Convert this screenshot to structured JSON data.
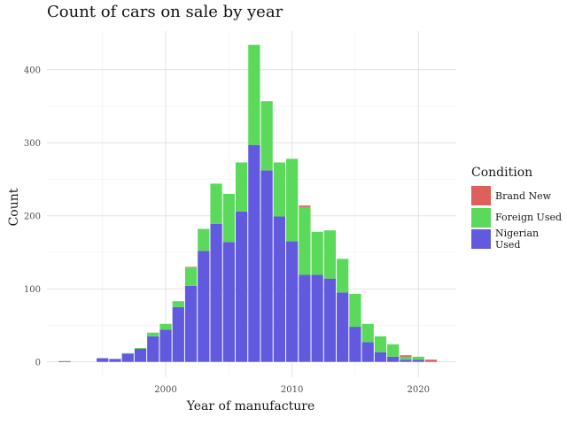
{
  "chart_data": {
    "type": "bar",
    "stacked": true,
    "title": "Count of cars on sale by year",
    "xlabel": "Year of manufacture",
    "ylabel": "Count",
    "xlim": [
      1990.6,
      2023.0
    ],
    "ylim": [
      -21,
      453
    ],
    "xticks": [
      2000,
      2010,
      2020
    ],
    "yticks": [
      0,
      100,
      200,
      300,
      400
    ],
    "grid": true,
    "legend": {
      "title": "Condition",
      "position": "right"
    },
    "x": [
      1992,
      1993,
      1994,
      1995,
      1996,
      1997,
      1998,
      1999,
      2000,
      2001,
      2002,
      2003,
      2004,
      2005,
      2006,
      2007,
      2008,
      2009,
      2010,
      2011,
      2012,
      2013,
      2014,
      2015,
      2016,
      2017,
      2018,
      2019,
      2020,
      2021
    ],
    "series": [
      {
        "name": "Nigerian Used",
        "color": "#6159de",
        "values": [
          1,
          0,
          0,
          5,
          4,
          11,
          18,
          35,
          44,
          75,
          104,
          152,
          189,
          164,
          206,
          297,
          262,
          199,
          165,
          119,
          119,
          114,
          95,
          48,
          27,
          13,
          7,
          3,
          3,
          0
        ]
      },
      {
        "name": "Foreign Used",
        "color": "#5bd95b",
        "values": [
          0,
          0,
          0,
          0,
          0,
          1,
          1,
          5,
          8,
          8,
          25,
          30,
          55,
          66,
          67,
          137,
          95,
          74,
          113,
          93,
          59,
          66,
          46,
          45,
          25,
          22,
          17,
          4,
          4,
          0
        ]
      },
      {
        "name": "Brand New",
        "color": "#dd605b",
        "values": [
          0,
          0,
          0,
          0,
          0,
          0,
          0,
          0,
          0,
          0,
          1,
          0,
          0,
          0,
          0,
          0,
          0,
          0,
          0,
          2,
          0,
          0,
          0,
          0,
          0,
          0,
          0,
          2,
          0,
          3
        ]
      }
    ],
    "legend_order": [
      "Brand New",
      "Foreign Used",
      "Nigerian Used"
    ]
  }
}
